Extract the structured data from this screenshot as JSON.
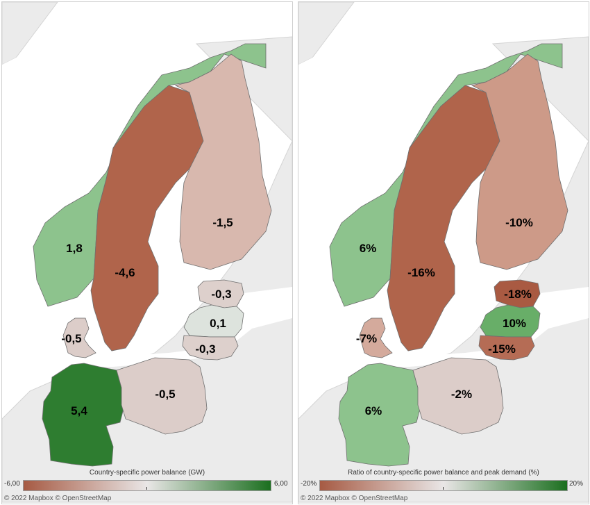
{
  "maps": [
    {
      "legend": {
        "title": "Country-specific power balance (GW)",
        "min_label": "-6,00",
        "max_label": "6,00",
        "low_color": "#a65a43",
        "mid_color": "#e9e6e6",
        "high_color": "#1b6f1f"
      },
      "attribution": "© 2022 Mapbox © OpenStreetMap",
      "regions": [
        {
          "id": "norway",
          "label": "1,8",
          "value": 1.8,
          "color": "#8dc38d"
        },
        {
          "id": "sweden",
          "label": "-4,6",
          "value": -4.6,
          "color": "#b0644b"
        },
        {
          "id": "finland",
          "label": "-1,5",
          "value": -1.5,
          "color": "#d8b8ae"
        },
        {
          "id": "estonia",
          "label": "-0,3",
          "value": -0.3,
          "color": "#ddd0cc"
        },
        {
          "id": "latvia",
          "label": "0,1",
          "value": 0.1,
          "color": "#dde3dd"
        },
        {
          "id": "lithuania",
          "label": "-0,3",
          "value": -0.3,
          "color": "#ddd0cc"
        },
        {
          "id": "denmark",
          "label": "-0,5",
          "value": -0.5,
          "color": "#dccdc9"
        },
        {
          "id": "germany",
          "label": "5,4",
          "value": 5.4,
          "color": "#2e7d30"
        },
        {
          "id": "poland",
          "label": "-0,5",
          "value": -0.5,
          "color": "#dccdc9"
        }
      ]
    },
    {
      "legend": {
        "title": "Ratio of country-specific power balance and peak demand (%)",
        "min_label": "-20%",
        "max_label": "20%",
        "low_color": "#a65a43",
        "mid_color": "#e9e6e6",
        "high_color": "#1b6f1f"
      },
      "attribution": "© 2022 Mapbox © OpenStreetMap",
      "regions": [
        {
          "id": "norway",
          "label": "6%",
          "value": 6,
          "color": "#8dc38d"
        },
        {
          "id": "sweden",
          "label": "-16%",
          "value": -16,
          "color": "#b0644b"
        },
        {
          "id": "finland",
          "label": "-10%",
          "value": -10,
          "color": "#cd9a88"
        },
        {
          "id": "estonia",
          "label": "-18%",
          "value": -18,
          "color": "#a95a42"
        },
        {
          "id": "latvia",
          "label": "10%",
          "value": 10,
          "color": "#68ae68"
        },
        {
          "id": "lithuania",
          "label": "-15%",
          "value": -15,
          "color": "#b56c55"
        },
        {
          "id": "denmark",
          "label": "-7%",
          "value": -7,
          "color": "#d4aa9c"
        },
        {
          "id": "germany",
          "label": "6%",
          "value": 6,
          "color": "#8dc38d"
        },
        {
          "id": "poland",
          "label": "-2%",
          "value": -2,
          "color": "#dccdc9"
        }
      ]
    }
  ]
}
